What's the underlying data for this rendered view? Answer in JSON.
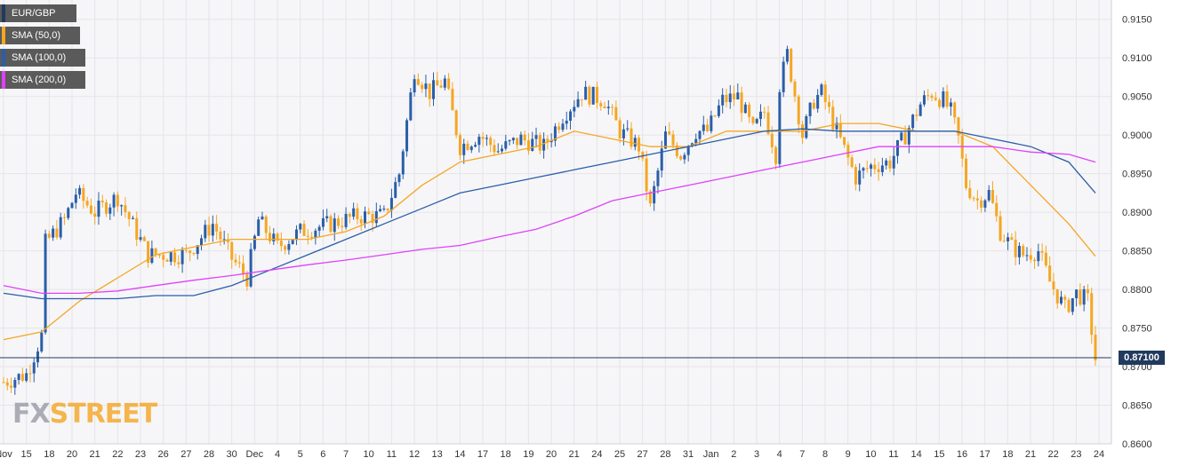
{
  "legend": [
    {
      "label": "EUR/GBP",
      "color": "#213a5e"
    },
    {
      "label": "SMA (50,0)",
      "color": "#f5a623"
    },
    {
      "label": "SMA (100,0)",
      "color": "#2a5ea8"
    },
    {
      "label": "SMA (200,0)",
      "color": "#e040fb"
    }
  ],
  "price_label": "0.87100",
  "logo": {
    "main": "FX",
    "accent": "STREET"
  },
  "chart_data": {
    "type": "candlestick",
    "symbol": "EUR/GBP",
    "current_price": 0.871,
    "ylim": [
      0.86,
      0.9175
    ],
    "y_ticks": [
      "0.8600",
      "0.8650",
      "0.8700",
      "0.8750",
      "0.8800",
      "0.8850",
      "0.8900",
      "0.8950",
      "0.9000",
      "0.9050",
      "0.9100",
      "0.9150"
    ],
    "x_ticks": [
      "Nov",
      "15",
      "18",
      "20",
      "21",
      "22",
      "23",
      "26",
      "27",
      "28",
      "30",
      "Dec",
      "4",
      "5",
      "6",
      "7",
      "10",
      "11",
      "12",
      "13",
      "14",
      "17",
      "18",
      "19",
      "20",
      "21",
      "24",
      "25",
      "27",
      "28",
      "31",
      "Jan",
      "2",
      "3",
      "4",
      "7",
      "8",
      "9",
      "10",
      "11",
      "14",
      "15",
      "16",
      "17",
      "18",
      "21",
      "22",
      "23",
      "24"
    ],
    "x_range_index": [
      0,
      287
    ],
    "candles_close_approx": [
      [
        0,
        0.868
      ],
      [
        6,
        0.869
      ],
      [
        10,
        0.874
      ],
      [
        11,
        0.886
      ],
      [
        16,
        0.889
      ],
      [
        19,
        0.8925
      ],
      [
        24,
        0.89
      ],
      [
        30,
        0.892
      ],
      [
        38,
        0.8845
      ],
      [
        48,
        0.8845
      ],
      [
        55,
        0.8885
      ],
      [
        60,
        0.884
      ],
      [
        64,
        0.8815
      ],
      [
        67,
        0.889
      ],
      [
        72,
        0.8855
      ],
      [
        78,
        0.8875
      ],
      [
        86,
        0.8885
      ],
      [
        93,
        0.8895
      ],
      [
        100,
        0.8895
      ],
      [
        104,
        0.895
      ],
      [
        108,
        0.9085
      ],
      [
        112,
        0.9055
      ],
      [
        116,
        0.907
      ],
      [
        120,
        0.8985
      ],
      [
        125,
        0.9
      ],
      [
        130,
        0.898
      ],
      [
        136,
        0.8995
      ],
      [
        142,
        0.8985
      ],
      [
        147,
        0.9025
      ],
      [
        152,
        0.9055
      ],
      [
        158,
        0.9045
      ],
      [
        162,
        0.9005
      ],
      [
        167,
        0.8985
      ],
      [
        170,
        0.8905
      ],
      [
        174,
        0.9
      ],
      [
        178,
        0.8975
      ],
      [
        182,
        0.9005
      ],
      [
        185,
        0.9005
      ],
      [
        189,
        0.9045
      ],
      [
        193,
        0.905
      ],
      [
        197,
        0.9005
      ],
      [
        200,
        0.903
      ],
      [
        203,
        0.8975
      ],
      [
        204,
        0.9065
      ],
      [
        206,
        0.9105
      ],
      [
        210,
        0.9
      ],
      [
        213,
        0.9045
      ],
      [
        215,
        0.9055
      ],
      [
        219,
        0.9005
      ],
      [
        224,
        0.8945
      ],
      [
        228,
        0.896
      ],
      [
        233,
        0.8965
      ],
      [
        237,
        0.9
      ],
      [
        241,
        0.904
      ],
      [
        244,
        0.9055
      ],
      [
        247,
        0.9045
      ],
      [
        249,
        0.903
      ],
      [
        251,
        0.8995
      ],
      [
        253,
        0.8935
      ],
      [
        256,
        0.8915
      ],
      [
        259,
        0.8925
      ],
      [
        262,
        0.8875
      ],
      [
        265,
        0.8855
      ],
      [
        268,
        0.8845
      ],
      [
        272,
        0.885
      ],
      [
        275,
        0.881
      ],
      [
        279,
        0.8775
      ],
      [
        282,
        0.8795
      ],
      [
        285,
        0.8785
      ],
      [
        287,
        0.871
      ]
    ],
    "series": [
      {
        "name": "SMA (50,0)",
        "color": "#f5a623",
        "points": [
          [
            0,
            0.8735
          ],
          [
            10,
            0.8745
          ],
          [
            20,
            0.8785
          ],
          [
            30,
            0.8815
          ],
          [
            40,
            0.8845
          ],
          [
            50,
            0.8855
          ],
          [
            60,
            0.8865
          ],
          [
            70,
            0.8865
          ],
          [
            80,
            0.8865
          ],
          [
            90,
            0.8875
          ],
          [
            100,
            0.8895
          ],
          [
            110,
            0.8935
          ],
          [
            120,
            0.8965
          ],
          [
            130,
            0.8975
          ],
          [
            140,
            0.8985
          ],
          [
            150,
            0.9005
          ],
          [
            160,
            0.8995
          ],
          [
            170,
            0.8985
          ],
          [
            180,
            0.8985
          ],
          [
            190,
            0.9005
          ],
          [
            200,
            0.9005
          ],
          [
            210,
            0.9005
          ],
          [
            220,
            0.9015
          ],
          [
            230,
            0.9015
          ],
          [
            240,
            0.9005
          ],
          [
            250,
            0.9005
          ],
          [
            260,
            0.8985
          ],
          [
            270,
            0.8935
          ],
          [
            280,
            0.8885
          ],
          [
            287,
            0.8843
          ]
        ]
      },
      {
        "name": "SMA (100,0)",
        "color": "#2a5ea8",
        "points": [
          [
            0,
            0.8795
          ],
          [
            10,
            0.8788
          ],
          [
            20,
            0.8788
          ],
          [
            30,
            0.8788
          ],
          [
            40,
            0.8792
          ],
          [
            50,
            0.8792
          ],
          [
            60,
            0.8805
          ],
          [
            70,
            0.8825
          ],
          [
            80,
            0.8845
          ],
          [
            90,
            0.8865
          ],
          [
            100,
            0.8885
          ],
          [
            110,
            0.8905
          ],
          [
            120,
            0.8925
          ],
          [
            130,
            0.8935
          ],
          [
            140,
            0.8945
          ],
          [
            150,
            0.8955
          ],
          [
            160,
            0.8965
          ],
          [
            170,
            0.8975
          ],
          [
            180,
            0.8985
          ],
          [
            190,
            0.8995
          ],
          [
            200,
            0.9005
          ],
          [
            210,
            0.9008
          ],
          [
            220,
            0.9005
          ],
          [
            230,
            0.9005
          ],
          [
            240,
            0.9005
          ],
          [
            250,
            0.9005
          ],
          [
            260,
            0.8995
          ],
          [
            270,
            0.8985
          ],
          [
            280,
            0.8965
          ],
          [
            287,
            0.8925
          ]
        ]
      },
      {
        "name": "SMA (200,0)",
        "color": "#e040fb",
        "points": [
          [
            0,
            0.8805
          ],
          [
            10,
            0.8795
          ],
          [
            20,
            0.8795
          ],
          [
            30,
            0.8798
          ],
          [
            40,
            0.8805
          ],
          [
            50,
            0.8812
          ],
          [
            60,
            0.8818
          ],
          [
            70,
            0.8825
          ],
          [
            80,
            0.8832
          ],
          [
            90,
            0.8838
          ],
          [
            100,
            0.8845
          ],
          [
            110,
            0.8852
          ],
          [
            120,
            0.8857
          ],
          [
            130,
            0.8868
          ],
          [
            140,
            0.8878
          ],
          [
            150,
            0.8895
          ],
          [
            160,
            0.8915
          ],
          [
            170,
            0.8925
          ],
          [
            180,
            0.8935
          ],
          [
            190,
            0.8945
          ],
          [
            200,
            0.8955
          ],
          [
            210,
            0.8965
          ],
          [
            220,
            0.8975
          ],
          [
            230,
            0.8985
          ],
          [
            240,
            0.8985
          ],
          [
            250,
            0.8985
          ],
          [
            260,
            0.8985
          ],
          [
            270,
            0.8978
          ],
          [
            280,
            0.8975
          ],
          [
            287,
            0.8965
          ]
        ]
      }
    ]
  }
}
